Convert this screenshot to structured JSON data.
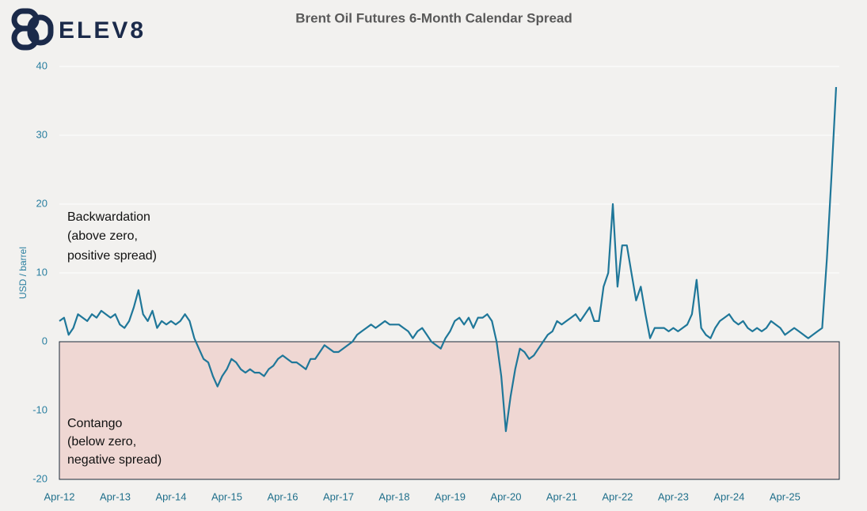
{
  "brand": "ELEV8",
  "chart_data": {
    "type": "line",
    "title": "Brent Oil Futures 6-Month Calendar Spread",
    "y_label": "USD / barrel",
    "color": "#1f7799",
    "grid": true,
    "ylim": [
      -20,
      40
    ],
    "yticks": [
      -20,
      -10,
      0,
      10,
      20,
      30,
      40
    ],
    "xlim": [
      "2012-04",
      "2026-03"
    ],
    "xticks": [
      {
        "value": "2012-04",
        "label": "Apr-12"
      },
      {
        "value": "2013-04",
        "label": "Apr-13"
      },
      {
        "value": "2014-04",
        "label": "Apr-14"
      },
      {
        "value": "2015-04",
        "label": "Apr-15"
      },
      {
        "value": "2016-04",
        "label": "Apr-16"
      },
      {
        "value": "2017-04",
        "label": "Apr-17"
      },
      {
        "value": "2018-04",
        "label": "Apr-18"
      },
      {
        "value": "2019-04",
        "label": "Apr-19"
      },
      {
        "value": "2020-04",
        "label": "Apr-20"
      },
      {
        "value": "2021-04",
        "label": "Apr-21"
      },
      {
        "value": "2022-04",
        "label": "Apr-22"
      },
      {
        "value": "2023-04",
        "label": "Apr-23"
      },
      {
        "value": "2024-04",
        "label": "Apr-24"
      },
      {
        "value": "2025-04",
        "label": "Apr-25"
      }
    ],
    "annotations": [
      {
        "lines": [
          "Backwardation",
          "(above zero,",
          "positive spread)"
        ]
      },
      {
        "lines": [
          "Contango",
          "(below zero,",
          "negative spread)"
        ]
      }
    ],
    "x": [
      "2012-04",
      "2012-05",
      "2012-06",
      "2012-07",
      "2012-08",
      "2012-09",
      "2012-10",
      "2012-11",
      "2012-12",
      "2013-01",
      "2013-02",
      "2013-03",
      "2013-04",
      "2013-05",
      "2013-06",
      "2013-07",
      "2013-08",
      "2013-09",
      "2013-10",
      "2013-11",
      "2013-12",
      "2014-01",
      "2014-02",
      "2014-03",
      "2014-04",
      "2014-05",
      "2014-06",
      "2014-07",
      "2014-08",
      "2014-09",
      "2014-10",
      "2014-11",
      "2014-12",
      "2015-01",
      "2015-02",
      "2015-03",
      "2015-04",
      "2015-05",
      "2015-06",
      "2015-07",
      "2015-08",
      "2015-09",
      "2015-10",
      "2015-11",
      "2015-12",
      "2016-01",
      "2016-02",
      "2016-03",
      "2016-04",
      "2016-05",
      "2016-06",
      "2016-07",
      "2016-08",
      "2016-09",
      "2016-10",
      "2016-11",
      "2016-12",
      "2017-01",
      "2017-02",
      "2017-03",
      "2017-04",
      "2017-05",
      "2017-06",
      "2017-07",
      "2017-08",
      "2017-09",
      "2017-10",
      "2017-11",
      "2017-12",
      "2018-01",
      "2018-02",
      "2018-03",
      "2018-04",
      "2018-05",
      "2018-06",
      "2018-07",
      "2018-08",
      "2018-09",
      "2018-10",
      "2018-11",
      "2018-12",
      "2019-01",
      "2019-02",
      "2019-03",
      "2019-04",
      "2019-05",
      "2019-06",
      "2019-07",
      "2019-08",
      "2019-09",
      "2019-10",
      "2019-11",
      "2019-12",
      "2020-01",
      "2020-02",
      "2020-03",
      "2020-04",
      "2020-05",
      "2020-06",
      "2020-07",
      "2020-08",
      "2020-09",
      "2020-10",
      "2020-11",
      "2020-12",
      "2021-01",
      "2021-02",
      "2021-03",
      "2021-04",
      "2021-05",
      "2021-06",
      "2021-07",
      "2021-08",
      "2021-09",
      "2021-10",
      "2021-11",
      "2021-12",
      "2022-01",
      "2022-02",
      "2022-03",
      "2022-04",
      "2022-05",
      "2022-06",
      "2022-07",
      "2022-08",
      "2022-09",
      "2022-10",
      "2022-11",
      "2022-12",
      "2023-01",
      "2023-02",
      "2023-03",
      "2023-04",
      "2023-05",
      "2023-06",
      "2023-07",
      "2023-08",
      "2023-09",
      "2023-10",
      "2023-11",
      "2023-12",
      "2024-01",
      "2024-02",
      "2024-03",
      "2024-04",
      "2024-05",
      "2024-06",
      "2024-07",
      "2024-08",
      "2024-09",
      "2024-10",
      "2024-11",
      "2024-12",
      "2025-01",
      "2025-02",
      "2025-03",
      "2025-04",
      "2025-05",
      "2025-06",
      "2025-07",
      "2025-08",
      "2025-09",
      "2025-10",
      "2025-11",
      "2025-12",
      "2026-01",
      "2026-02",
      "2026-03"
    ],
    "values": [
      3,
      3.5,
      1,
      2,
      4,
      3.5,
      3,
      4,
      3.5,
      4.5,
      4,
      3.5,
      4,
      2.5,
      2,
      3,
      5,
      7.5,
      4,
      3,
      4.5,
      2,
      3,
      2.5,
      3,
      2.5,
      3,
      4,
      3,
      0.5,
      -1,
      -2.5,
      -3,
      -5,
      -6.5,
      -5,
      -4,
      -2.5,
      -3,
      -4,
      -4.5,
      -4,
      -4.5,
      -4.5,
      -5,
      -4,
      -3.5,
      -2.5,
      -2,
      -2.5,
      -3,
      -3,
      -3.5,
      -4,
      -2.5,
      -2.5,
      -1.5,
      -0.5,
      -1,
      -1.5,
      -1.5,
      -1,
      -0.5,
      0,
      1,
      1.5,
      2,
      2.5,
      2,
      2.5,
      3,
      2.5,
      2.5,
      2.5,
      2,
      1.5,
      0.5,
      1.5,
      2,
      1,
      0,
      -0.5,
      -1,
      0.5,
      1.5,
      3,
      3.5,
      2.5,
      3.5,
      2,
      3.5,
      3.5,
      4,
      3,
      0,
      -5,
      -13,
      -8,
      -4,
      -1,
      -1.5,
      -2.5,
      -2,
      -1,
      0,
      1,
      1.5,
      3,
      2.5,
      3,
      3.5,
      4,
      3,
      4,
      5,
      3,
      3,
      8,
      10,
      20,
      8,
      14,
      14,
      10,
      6,
      8,
      4,
      0.5,
      2,
      2,
      2,
      1.5,
      2,
      1.5,
      2,
      2.5,
      4,
      9,
      2,
      1,
      0.5,
      2,
      3,
      3.5,
      4,
      3,
      2.5,
      3,
      2,
      1.5,
      2,
      1.5,
      2,
      3,
      2.5,
      2,
      1,
      1.5,
      2,
      1.5,
      1,
      0.5,
      1,
      1.5,
      2,
      12,
      24,
      37
    ]
  }
}
